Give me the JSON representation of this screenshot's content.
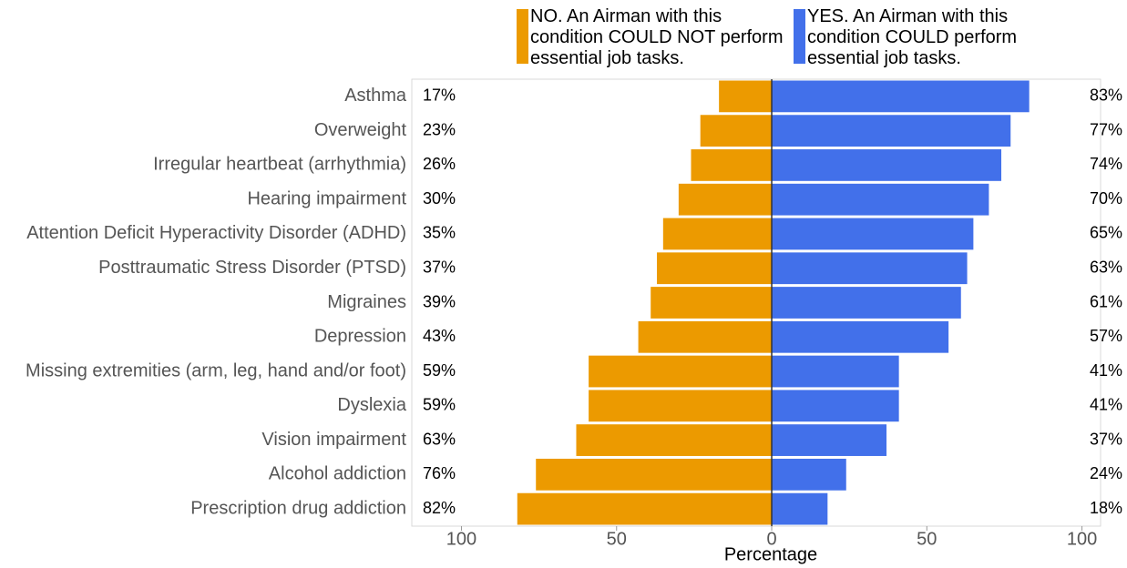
{
  "chart_data": {
    "type": "diverging_bar",
    "categories": [
      "Asthma",
      "Overweight",
      "Irregular heartbeat (arrhythmia)",
      "Hearing impairment",
      "Attention Deficit Hyperactivity Disorder (ADHD)",
      "Posttraumatic Stress Disorder (PTSD)",
      "Migraines",
      "Depression",
      "Missing extremities (arm, leg, hand and/or foot)",
      "Dyslexia",
      "Vision impairment",
      "Alcohol addiction",
      "Prescription drug addiction"
    ],
    "series": [
      {
        "name": "NO. An Airman with this condition COULD NOT perform essential job tasks.",
        "color": "#ec9a00",
        "values": [
          17,
          23,
          26,
          30,
          35,
          37,
          39,
          43,
          59,
          59,
          63,
          76,
          82
        ],
        "value_labels": [
          "17%",
          "23%",
          "26%",
          "30%",
          "35%",
          "37%",
          "39%",
          "43%",
          "59%",
          "59%",
          "63%",
          "76%",
          "82%"
        ]
      },
      {
        "name": "YES. An Airman with this condition COULD perform essential job tasks.",
        "color": "#4270ea",
        "values": [
          83,
          77,
          74,
          70,
          65,
          63,
          61,
          57,
          41,
          41,
          37,
          24,
          18
        ],
        "value_labels": [
          "83%",
          "77%",
          "74%",
          "70%",
          "65%",
          "63%",
          "61%",
          "57%",
          "41%",
          "41%",
          "37%",
          "24%",
          "18%"
        ]
      }
    ],
    "xlabel": "Percentage",
    "xlim": [
      -116,
      106
    ],
    "xticks": [
      {
        "value": -100,
        "label": "100"
      },
      {
        "value": -50,
        "label": "50"
      },
      0,
      50,
      100
    ],
    "legend": "top"
  }
}
